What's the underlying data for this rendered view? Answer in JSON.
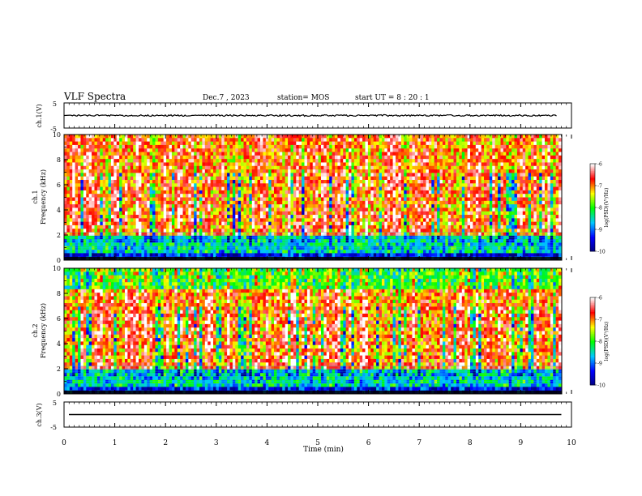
{
  "header": {
    "title": "VLF Spectra",
    "date": "Dec.7 , 2023",
    "station": "station= MOS",
    "start_ut": "start  UT =  8 : 20 : 1"
  },
  "panels": {
    "ch1_waveform": {
      "ylabel": "ch.1(V)",
      "yticks": [
        "5",
        "-5"
      ]
    },
    "ch1_spectrogram": {
      "ylabel": "ch.1\nFrequency (kHz)",
      "ylabel_line1": "ch.1",
      "ylabel_line2": "Frequency (kHz)"
    },
    "ch2_spectrogram": {
      "ylabel_line1": "ch.2",
      "ylabel_line2": "Frequency (kHz)"
    },
    "ch3_waveform": {
      "ylabel": "ch.3(V)",
      "yticks": [
        "5",
        "-5"
      ]
    }
  },
  "colorbar": {
    "label": "log(PSD)(V²/Hz)",
    "ticks": [
      "-6",
      "-7",
      "-8",
      "-9",
      "-10"
    ]
  },
  "chart_data": {
    "type": "heatmap",
    "title": "VLF Spectra",
    "xlabel": "Time (min)",
    "ylabel": "Frequency (kHz)",
    "xlim": [
      0,
      10
    ],
    "ylim": [
      0,
      10
    ],
    "x_ticks": [
      "0",
      "1",
      "2",
      "3",
      "4",
      "5",
      "6",
      "7",
      "8",
      "9",
      "10"
    ],
    "y_ticks": [
      "0",
      "2",
      "4",
      "6",
      "8",
      "10"
    ],
    "colorscale": [
      "#000080",
      "#0000ff",
      "#00c8ff",
      "#00ff00",
      "#ffff00",
      "#ff0000",
      "#ffffff"
    ],
    "color_range": [
      -10,
      -6
    ],
    "data_end_min": 9.8,
    "ch1_waveform_level": 0,
    "ch3_waveform_level": 0
  }
}
